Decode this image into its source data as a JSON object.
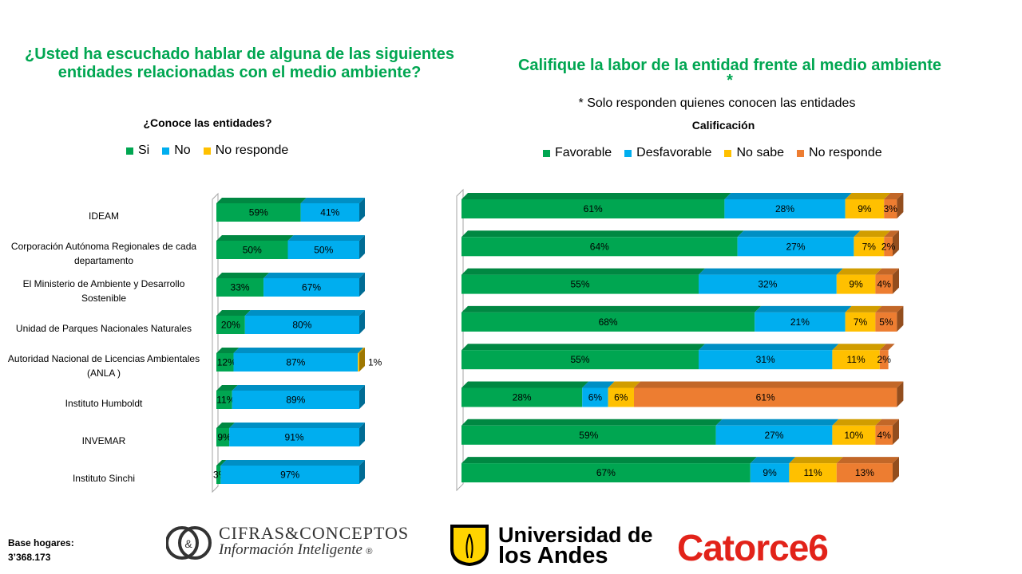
{
  "colors": {
    "green": "#00a651",
    "blue": "#00aeef",
    "yellow": "#ffc000",
    "orange": "#ed7d31",
    "stripe_top": "#00b050",
    "stripe_bottom": "#00b0f0"
  },
  "left_title": "¿Usted ha escuchado hablar de alguna de las siguientes entidades relacionadas con el medio ambiente?",
  "right_title": "Califique la labor de la entidad frente al medio ambiente",
  "right_title_mark": "*",
  "right_note": "* Solo responden quienes conocen las entidades",
  "base_label": "Base hogares:",
  "base_value": "3’368.173",
  "logos": {
    "cifras_mark": "&",
    "cifras_name": "CIFRAS&CONCEPTOS",
    "cifras_sub": "Información Inteligente",
    "cifras_reg": "®",
    "andes_line1": "Universidad de",
    "andes_line2": "los Andes",
    "catorce": "Catorce6"
  },
  "chart_data": [
    {
      "type": "bar",
      "stacked": true,
      "orientation": "horizontal",
      "title": "¿Conoce las entidades?",
      "legend_position": "top",
      "categories": [
        "IDEAM",
        "Corporación Autónoma Regionales de cada departamento",
        "El Ministerio de Ambiente y Desarrollo Sostenible",
        "Unidad de Parques Nacionales Naturales",
        "Autoridad Nacional de Licencias Ambientales  (ANLA )",
        "Instituto  Humboldt",
        "INVEMAR",
        "Instituto Sinchi"
      ],
      "series": [
        {
          "name": "Si",
          "color": "#00a651",
          "values": [
            59,
            50,
            33,
            20,
            12,
            11,
            9,
            3
          ]
        },
        {
          "name": "No",
          "color": "#00aeef",
          "values": [
            41,
            50,
            67,
            80,
            87,
            89,
            91,
            97
          ]
        },
        {
          "name": "No responde",
          "color": "#ffc000",
          "values": [
            0,
            0,
            0,
            0,
            1,
            0,
            0,
            0
          ]
        }
      ],
      "xlim": [
        0,
        100
      ]
    },
    {
      "type": "bar",
      "stacked": true,
      "orientation": "horizontal",
      "title": "Calificación",
      "legend_position": "top",
      "series": [
        {
          "name": "Favorable",
          "color": "#00a651",
          "values": [
            61,
            64,
            55,
            68,
            55,
            28,
            59,
            67
          ]
        },
        {
          "name": "Desfavorable",
          "color": "#00aeef",
          "values": [
            28,
            27,
            32,
            21,
            31,
            6,
            27,
            9
          ]
        },
        {
          "name": "No sabe",
          "color": "#ffc000",
          "values": [
            9,
            7,
            9,
            7,
            11,
            6,
            10,
            11
          ]
        },
        {
          "name": "No responde",
          "color": "#ed7d31",
          "values": [
            3,
            2,
            4,
            5,
            2,
            61,
            4,
            13
          ]
        }
      ],
      "xlim": [
        0,
        100
      ]
    }
  ]
}
